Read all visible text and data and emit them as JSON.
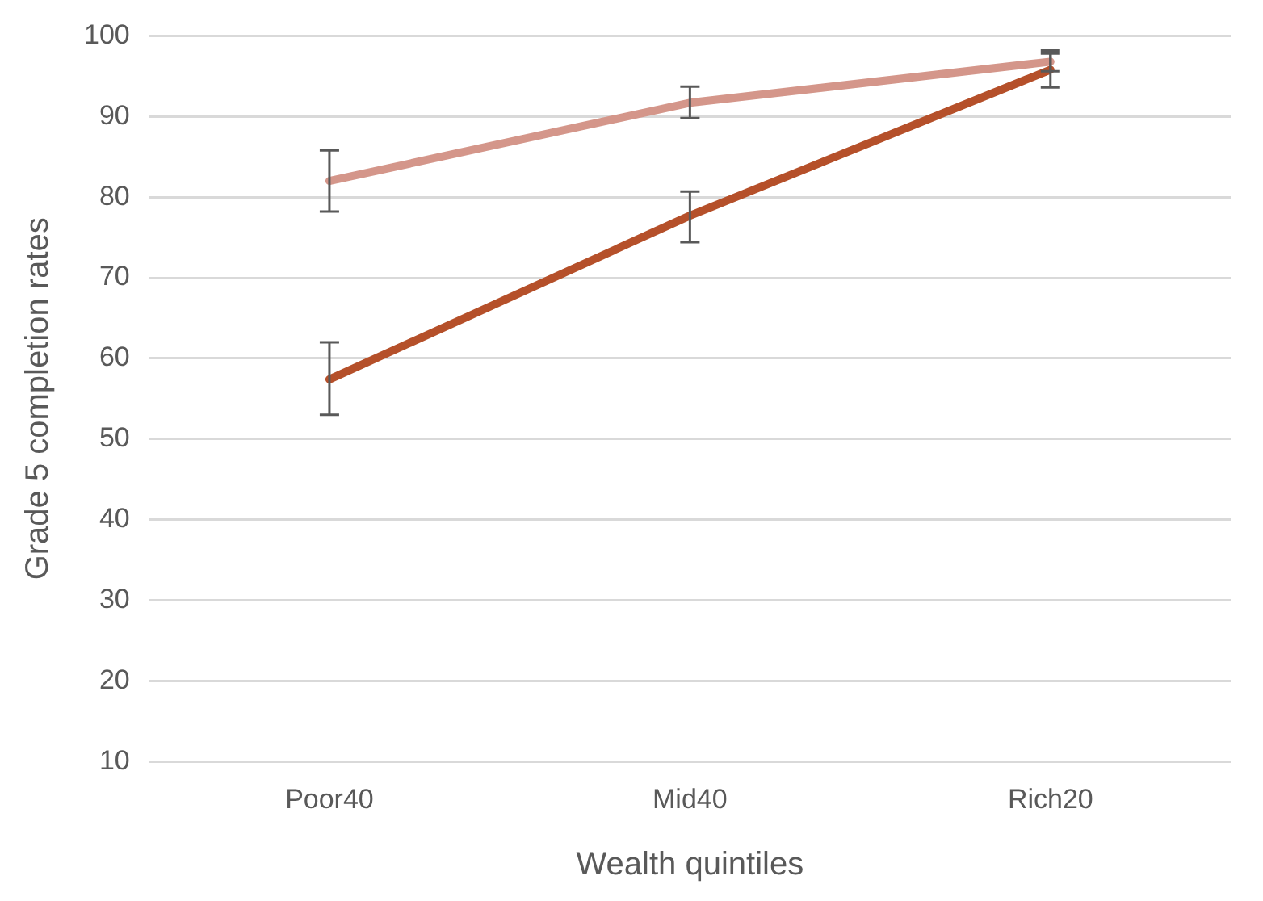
{
  "chart_data": {
    "type": "line",
    "xlabel": "Wealth quintiles",
    "ylabel": "Grade 5 completion rates",
    "categories": [
      "Poor40",
      "Mid40",
      "Rich20"
    ],
    "series": [
      {
        "color": "#d4968a",
        "values": [
          82,
          91.7,
          96.8
        ],
        "errors": [
          [
            78.2,
            85.8
          ],
          [
            89.8,
            93.7
          ],
          [
            95.6,
            98.2
          ]
        ]
      },
      {
        "color": "#b5502a",
        "values": [
          57.4,
          77.7,
          95.8
        ],
        "errors": [
          [
            53,
            62
          ],
          [
            74.4,
            80.7
          ],
          [
            93.6,
            97.8
          ]
        ]
      }
    ],
    "ylim": [
      10,
      100
    ],
    "yticks": [
      10,
      20,
      30,
      40,
      50,
      60,
      70,
      80,
      90,
      100
    ],
    "grid": "y",
    "legend": false,
    "line_style": "solid"
  }
}
